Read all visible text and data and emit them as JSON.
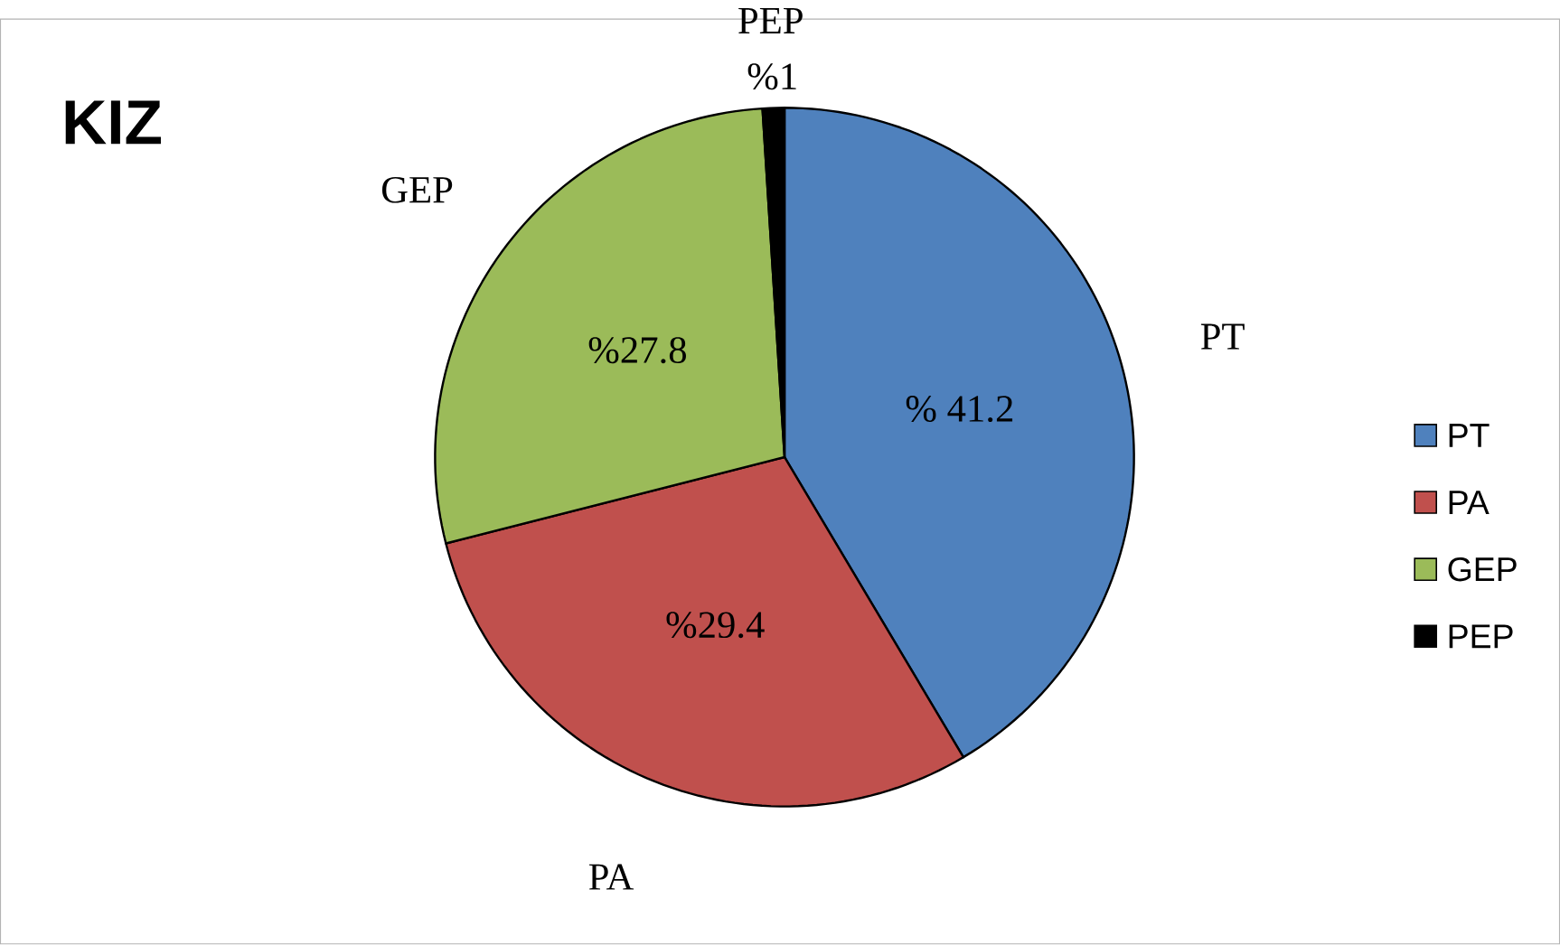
{
  "chart_data": {
    "type": "pie",
    "title": "KIZ",
    "categories": [
      "PT",
      "PA",
      "GEP",
      "PEP"
    ],
    "values": [
      41.2,
      29.4,
      27.8,
      1
    ],
    "colors": [
      "#4f81bd",
      "#c0504d",
      "#9bbb59",
      "#000000"
    ],
    "value_labels": [
      "% 41.2",
      "%29.4",
      "%27.8",
      "%1"
    ],
    "legend": "right"
  }
}
